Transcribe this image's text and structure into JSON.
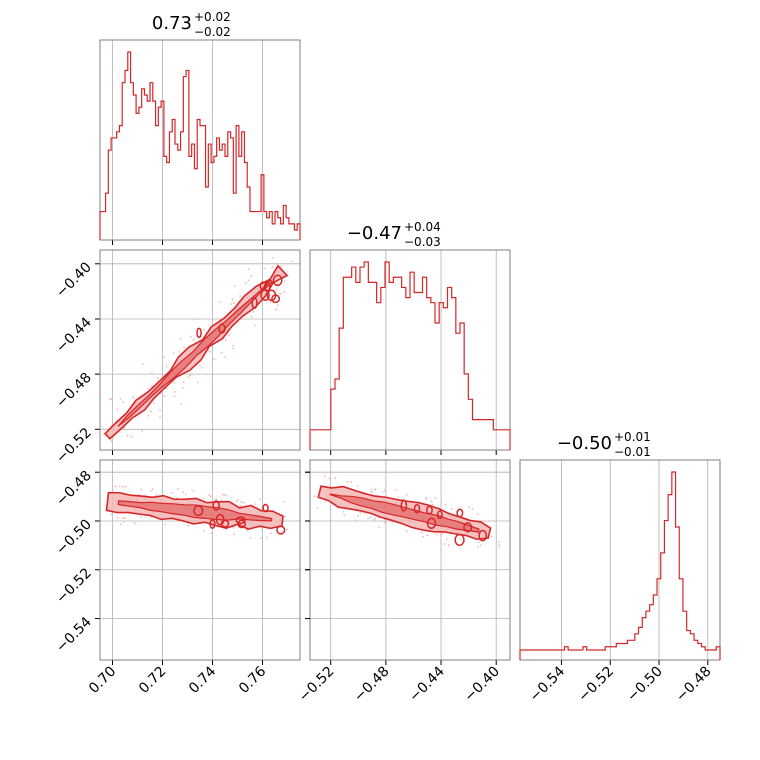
{
  "chart_data": {
    "type": "corner",
    "color": "#d62728",
    "grid": true,
    "parameters": [
      {
        "title": {
          "median": "0.73",
          "upper": "+0.02",
          "lower": "−0.02"
        },
        "range": [
          0.695,
          0.775
        ]
      },
      {
        "title": {
          "median": "−0.47",
          "upper": "+0.04",
          "lower": "−0.03"
        },
        "range": [
          -0.535,
          -0.39
        ]
      },
      {
        "title": {
          "median": "−0.50",
          "upper": "+0.01",
          "lower": "−0.01"
        },
        "range": [
          -0.557,
          -0.475
        ]
      }
    ],
    "x_ticks": [
      {
        "values": [
          0.7,
          0.72,
          0.74,
          0.76
        ],
        "labels": [
          "0.70",
          "0.72",
          "0.74",
          "0.76"
        ]
      },
      {
        "values": [
          -0.52,
          -0.48,
          -0.44,
          -0.4
        ],
        "labels": [
          "−0.52",
          "−0.48",
          "−0.44",
          "−0.40"
        ]
      },
      {
        "values": [
          -0.54,
          -0.52,
          -0.5,
          -0.48
        ],
        "labels": [
          "−0.54",
          "−0.52",
          "−0.50",
          "−0.48"
        ]
      }
    ],
    "y_ticks": [
      null,
      {
        "values": [
          -0.4,
          -0.44,
          -0.48,
          -0.52
        ],
        "labels": [
          "−0.40",
          "−0.44",
          "−0.48",
          "−0.52"
        ]
      },
      {
        "values": [
          -0.48,
          -0.5,
          -0.52,
          -0.54
        ],
        "labels": [
          "−0.48",
          "−0.50",
          "−0.52",
          "−0.54"
        ]
      }
    ],
    "histograms": [
      {
        "bin_edges_range": [
          0.695,
          0.775
        ],
        "counts": [
          3,
          3,
          6,
          13,
          15,
          15,
          16,
          17,
          24,
          26,
          29,
          24,
          22,
          19,
          20,
          23,
          22,
          21,
          24,
          21,
          17,
          20,
          21,
          12,
          11,
          16,
          18,
          14,
          13,
          16,
          25,
          26,
          12,
          14,
          10,
          18,
          17,
          17,
          7,
          14,
          11,
          12,
          15,
          13,
          14,
          12,
          16,
          15,
          6,
          17,
          12,
          16,
          11,
          7,
          3,
          3,
          3,
          3,
          9,
          3,
          2,
          3,
          1,
          3,
          2,
          1,
          4,
          2,
          1,
          1,
          0,
          1
        ]
      },
      {
        "bin_edges_range": [
          -0.535,
          -0.39
        ],
        "counts": [
          2,
          2,
          2,
          2,
          2,
          10,
          12,
          22,
          32,
          32,
          34,
          31,
          34,
          35,
          31,
          31,
          27,
          30,
          35,
          31,
          32,
          32,
          30,
          28,
          33,
          29,
          29,
          32,
          28,
          27,
          23,
          27,
          26,
          30,
          28,
          21,
          23,
          13,
          8,
          4,
          4,
          4,
          4,
          4,
          2,
          2,
          2,
          2
        ]
      },
      {
        "bin_edges_range": [
          -0.557,
          -0.475
        ],
        "counts": [
          0,
          0,
          0,
          0,
          0,
          0,
          0,
          0,
          0,
          0,
          0,
          0,
          1,
          0,
          0,
          0,
          0,
          1,
          0,
          0,
          0,
          0,
          0,
          1,
          1,
          1,
          2,
          2,
          2,
          3,
          3,
          5,
          7,
          10,
          12,
          14,
          17,
          22,
          30,
          40,
          48,
          55,
          38,
          22,
          12,
          6,
          5,
          3,
          2,
          1,
          0,
          0,
          0,
          1
        ]
      }
    ],
    "joint_trend": [
      {
        "pair": [
          0,
          1
        ],
        "line": [
          [
            0.698,
            -0.525
          ],
          [
            0.768,
            -0.405
          ]
        ],
        "spread": 0.006
      },
      {
        "pair": [
          0,
          2
        ],
        "line": [
          [
            0.698,
            -0.492
          ],
          [
            0.768,
            -0.5
          ]
        ],
        "spread": 0.004
      },
      {
        "pair": [
          1,
          2
        ],
        "line": [
          [
            -0.528,
            -0.488
          ],
          [
            -0.405,
            -0.505
          ]
        ],
        "spread": 0.004
      }
    ]
  }
}
